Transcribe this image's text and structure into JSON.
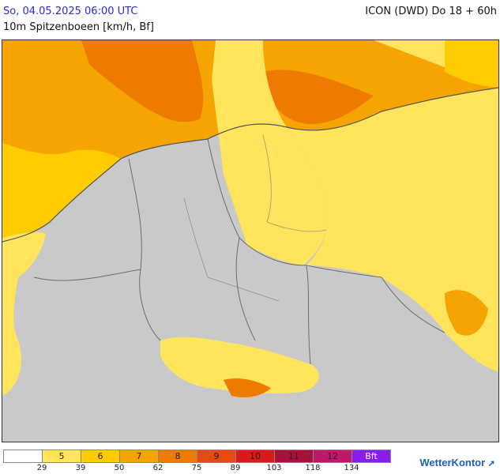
{
  "header": {
    "datetime": "So, 04.05.2025 06:00 UTC",
    "model": "ICON (DWD) Do 18 + 60h",
    "parameter": "10m Spitzenboeen [km/h, Bf]"
  },
  "legend": {
    "classes": [
      {
        "label": "",
        "color": "#ffffff",
        "text_color": "#222222"
      },
      {
        "label": "5",
        "color": "#ffe45c",
        "text_color": "#222222"
      },
      {
        "label": "6",
        "color": "#ffcc00",
        "text_color": "#222222"
      },
      {
        "label": "7",
        "color": "#f5a400",
        "text_color": "#222222"
      },
      {
        "label": "8",
        "color": "#ef7a00",
        "text_color": "#222222"
      },
      {
        "label": "9",
        "color": "#e54a10",
        "text_color": "#222222"
      },
      {
        "label": "10",
        "color": "#d81a1a",
        "text_color": "#222222"
      },
      {
        "label": "11",
        "color": "#a8123a",
        "text_color": "#222222"
      },
      {
        "label": "12",
        "color": "#c0176a",
        "text_color": "#222222"
      },
      {
        "label": "Bft",
        "color": "#8a1cf0",
        "text_color": "#ffffff"
      }
    ],
    "ticks": [
      "29",
      "39",
      "50",
      "62",
      "75",
      "89",
      "103",
      "118",
      "134"
    ]
  },
  "branding": {
    "name": "WetterKontor"
  }
}
